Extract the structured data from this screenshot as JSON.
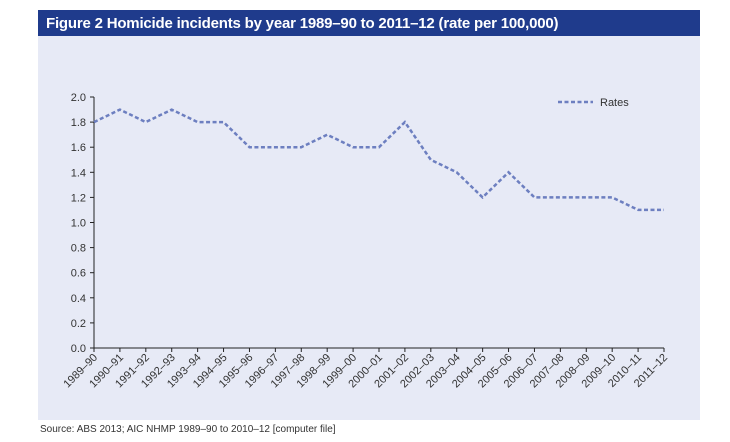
{
  "figure": {
    "title": "Figure 2 Homicide incidents by year 1989–90 to 2011–12 (rate per 100,000)",
    "source": "Source: ABS 2013; AIC NHMP 1989–90 to 2010–12 [computer file]"
  },
  "colors": {
    "header_bg": "#1f3b8c",
    "panel_bg": "#e7eaf6",
    "series_line": "#6d7fc0"
  },
  "chart_data": {
    "type": "line",
    "title": "Figure 2 Homicide incidents by year 1989–90 to 2011–12 (rate per 100,000)",
    "xlabel": "",
    "ylabel": "",
    "categories": [
      "1989–90",
      "1990–91",
      "1991–92",
      "1992–93",
      "1993–94",
      "1994–95",
      "1995–96",
      "1996–97",
      "1997–98",
      "1998–99",
      "1999–00",
      "2000–01",
      "2001–02",
      "2002–03",
      "2003–04",
      "2004–05",
      "2005–06",
      "2006–07",
      "2007–08",
      "2008–09",
      "2009–10",
      "2010–11",
      "2011–12"
    ],
    "series": [
      {
        "name": "Rates",
        "values": [
          1.8,
          1.9,
          1.8,
          1.9,
          1.8,
          1.8,
          1.6,
          1.6,
          1.6,
          1.7,
          1.6,
          1.6,
          1.8,
          1.5,
          1.4,
          1.2,
          1.4,
          1.2,
          1.2,
          1.2,
          1.2,
          1.1,
          1.1
        ],
        "style": "dashed"
      }
    ],
    "ylim": [
      0,
      2.0
    ],
    "yticks": [
      "0.0",
      "0.2",
      "0.4",
      "0.6",
      "0.8",
      "1.0",
      "1.2",
      "1.4",
      "1.6",
      "1.8",
      "2.0"
    ],
    "grid": false,
    "legend_position": "top-right"
  }
}
